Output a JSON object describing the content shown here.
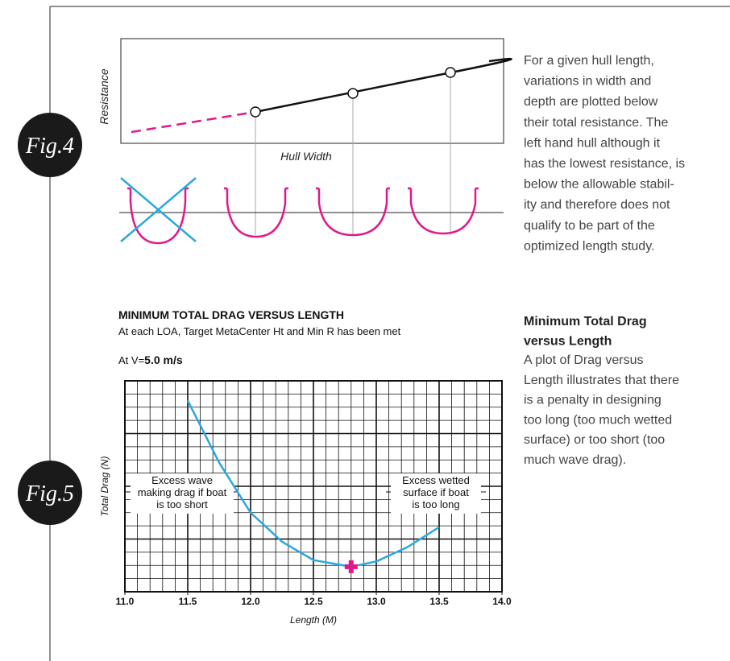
{
  "fig4": {
    "label": "Fig.4",
    "y_label": "Resistance",
    "x_label": "Hull Width",
    "paragraph": [
      "For a given hull length,",
      "variations in width and",
      "depth are plotted below",
      "their total resistance.  The",
      "left hand hull although it",
      "has the lowest resistance, is",
      "below the allowable stabil-",
      "ity and therefore does not",
      "qualify to be part of the",
      "optimized length study."
    ]
  },
  "fig5": {
    "label": "Fig.5",
    "heading": [
      "Minimum Total Drag",
      "versus Length"
    ],
    "paragraph": [
      "A plot of Drag versus",
      "Length illustrates that there",
      "is a penalty in designing",
      "too long (too much wetted",
      "surface) or too short (too",
      "much wave drag)."
    ]
  },
  "chart_data": {
    "type": "line",
    "title": "MINIMUM TOTAL DRAG VERSUS LENGTH",
    "subtitle": "At each LOA, Target MetaCenter Ht and Min R has been met",
    "speed_label": "At V=",
    "speed": "5.0 m/s",
    "x_label": "Length (M)",
    "y_label": "Total Drag (N)",
    "x": [
      11.5,
      11.75,
      12.0,
      12.25,
      12.5,
      12.8,
      13.0,
      13.25,
      13.5
    ],
    "values": [
      14.5,
      9.8,
      6.0,
      3.8,
      2.4,
      1.9,
      2.3,
      3.4,
      4.9
    ],
    "color": "#29a8e0",
    "highlight": {
      "x": 12.8,
      "value": 1.9,
      "color": "#e0198a"
    },
    "xlim": [
      11,
      14
    ],
    "xticks": [
      {
        "value": 11,
        "label": "11.0"
      },
      {
        "value": 11.5,
        "label": "11.5"
      },
      {
        "value": 12,
        "label": "12.0"
      },
      {
        "value": 12.5,
        "label": "12.5"
      },
      {
        "value": 13,
        "label": "13.0"
      },
      {
        "value": 13.5,
        "label": "13.5"
      },
      {
        "value": 14,
        "label": "14.0"
      }
    ],
    "ylim": [
      0,
      16
    ],
    "grid": true,
    "annotations": [
      {
        "lines": [
          "Excess wave",
          "making drag if boat",
          "is too short"
        ]
      },
      {
        "lines": [
          "Excess wetted",
          "surface if boat",
          "is too long"
        ]
      }
    ]
  }
}
